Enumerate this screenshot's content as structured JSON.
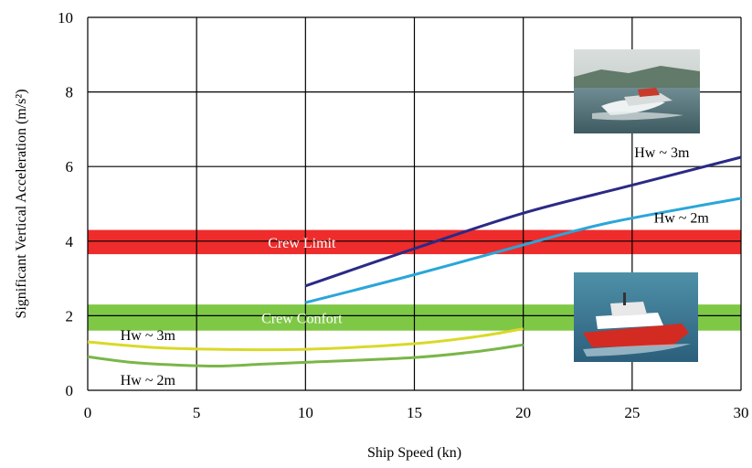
{
  "chart_data": {
    "type": "line",
    "xlabel": "Ship Speed (kn)",
    "ylabel": "Significant Vertical Acceleration (m/s²)",
    "xlim": [
      0,
      30
    ],
    "ylim": [
      0,
      10
    ],
    "x_ticks": [
      "0",
      "5",
      "10",
      "15",
      "20",
      "25",
      "30"
    ],
    "y_ticks": [
      "0",
      "2",
      "4",
      "6",
      "8",
      "10"
    ],
    "grid": true,
    "bands": [
      {
        "label": "Crew Limit",
        "y_min": 3.65,
        "y_max": 4.3,
        "color": "#ee2c2c"
      },
      {
        "label": "Crew Confort",
        "y_min": 1.6,
        "y_max": 2.3,
        "color": "#7ec846"
      }
    ],
    "series": [
      {
        "color": "#2b2a86",
        "x": [
          10,
          15,
          20,
          25,
          30
        ],
        "y": [
          2.8,
          3.8,
          4.75,
          5.5,
          6.25
        ]
      },
      {
        "color": "#2aa6d9",
        "x": [
          10,
          15,
          20,
          24,
          30
        ],
        "y": [
          2.35,
          3.1,
          3.9,
          4.5,
          5.15
        ]
      },
      {
        "color": "#d9d92a",
        "x": [
          0,
          3,
          6,
          10,
          15,
          18,
          20
        ],
        "y": [
          1.3,
          1.15,
          1.1,
          1.1,
          1.25,
          1.45,
          1.65
        ]
      },
      {
        "color": "#7ab648",
        "x": [
          0,
          2,
          4,
          6,
          8,
          10,
          15,
          18,
          20
        ],
        "y": [
          0.9,
          0.75,
          0.68,
          0.65,
          0.7,
          0.75,
          0.88,
          1.05,
          1.22
        ]
      }
    ],
    "annotations": [
      {
        "text": "Hw ~ 3m",
        "x": 25.1,
        "y": 6.25
      },
      {
        "text": "Hw ~ 2m",
        "x": 26.0,
        "y": 4.5
      },
      {
        "text": "Hw ~ 3m",
        "x": 1.5,
        "y": 1.35
      },
      {
        "text": "Hw ~ 2m",
        "x": 1.5,
        "y": 0.15
      }
    ]
  }
}
